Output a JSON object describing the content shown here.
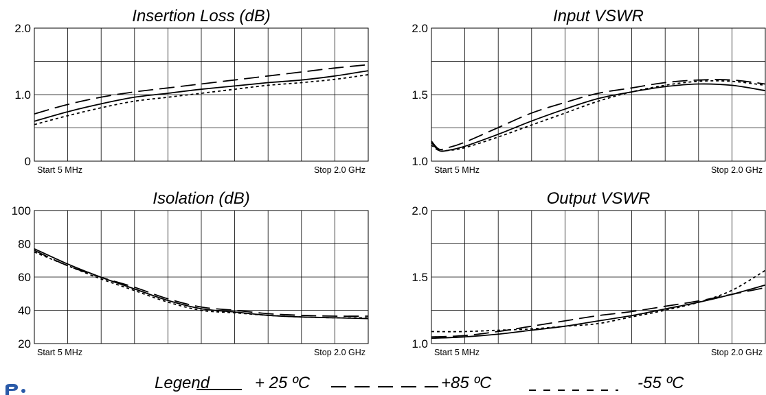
{
  "chart_data": [
    {
      "type": "line",
      "title": "Insertion Loss (dB)",
      "ylim": [
        0,
        2.0
      ],
      "y_tick_labels": [
        "2.0",
        "1.0",
        "0"
      ],
      "x_start_label": "Start 5 MHz",
      "x_stop_label": "Stop 2.0 GHz",
      "xlim": [
        0.005,
        2.0
      ],
      "grid": true,
      "x": [
        0.005,
        0.2,
        0.4,
        0.6,
        0.8,
        1.0,
        1.2,
        1.4,
        1.6,
        1.8,
        2.0
      ],
      "series": [
        {
          "name": "+ 25 ºC",
          "style": "solid",
          "values": [
            0.6,
            0.74,
            0.86,
            0.96,
            1.02,
            1.08,
            1.13,
            1.18,
            1.22,
            1.28,
            1.36
          ]
        },
        {
          "name": "+85 ºC",
          "style": "dashed",
          "values": [
            0.71,
            0.85,
            0.96,
            1.04,
            1.1,
            1.16,
            1.22,
            1.28,
            1.34,
            1.4,
            1.45
          ]
        },
        {
          "name": "-55 ºC",
          "style": "dotted",
          "values": [
            0.55,
            0.68,
            0.8,
            0.9,
            0.96,
            1.02,
            1.08,
            1.14,
            1.18,
            1.23,
            1.3
          ]
        }
      ]
    },
    {
      "type": "line",
      "title": "Input VSWR",
      "ylim": [
        1.0,
        2.0
      ],
      "y_tick_labels": [
        "2.0",
        "1.5",
        "1.0"
      ],
      "x_start_label": "Start 5 MHz",
      "x_stop_label": "Stop 2.0 GHz",
      "xlim": [
        0.005,
        2.0
      ],
      "grid": true,
      "x": [
        0.005,
        0.05,
        0.1,
        0.2,
        0.4,
        0.6,
        0.8,
        1.0,
        1.2,
        1.4,
        1.6,
        1.8,
        2.0
      ],
      "series": [
        {
          "name": "+ 25 ºC",
          "style": "solid",
          "values": [
            1.14,
            1.08,
            1.08,
            1.11,
            1.2,
            1.3,
            1.39,
            1.47,
            1.52,
            1.56,
            1.58,
            1.57,
            1.53
          ]
        },
        {
          "name": "+85 ºC",
          "style": "dashed",
          "values": [
            1.15,
            1.09,
            1.1,
            1.14,
            1.25,
            1.36,
            1.44,
            1.51,
            1.55,
            1.59,
            1.61,
            1.61,
            1.58
          ]
        },
        {
          "name": "-55 ºC",
          "style": "dotted",
          "values": [
            1.12,
            1.08,
            1.08,
            1.1,
            1.18,
            1.27,
            1.36,
            1.45,
            1.52,
            1.57,
            1.6,
            1.6,
            1.57
          ]
        }
      ]
    },
    {
      "type": "line",
      "title": "Isolation (dB)",
      "ylim": [
        20,
        100
      ],
      "y_tick_labels": [
        "100",
        "80",
        "60",
        "40",
        "20"
      ],
      "x_start_label": "Start 5 MHz",
      "x_stop_label": "Stop 2.0 GHz",
      "xlim": [
        0.005,
        2.0
      ],
      "grid": true,
      "x": [
        0.005,
        0.2,
        0.4,
        0.6,
        0.8,
        1.0,
        1.2,
        1.4,
        1.6,
        1.8,
        2.0
      ],
      "series": [
        {
          "name": "+ 25 ºC",
          "style": "solid",
          "values": [
            77,
            68,
            60,
            53,
            46,
            41,
            39,
            37,
            36,
            35.5,
            35
          ]
        },
        {
          "name": "+85 ºC",
          "style": "dashed",
          "values": [
            76,
            67,
            60,
            54,
            47,
            42,
            40,
            38,
            37,
            36.5,
            36.5
          ]
        },
        {
          "name": "-55 ºC",
          "style": "dotted",
          "values": [
            75,
            67,
            59,
            52,
            45,
            40,
            38.5,
            37,
            36,
            35.5,
            35.5
          ]
        }
      ]
    },
    {
      "type": "line",
      "title": "Output VSWR",
      "ylim": [
        1.0,
        2.0
      ],
      "y_tick_labels": [
        "2.0",
        "1.5",
        "1.0"
      ],
      "x_start_label": "Start 5 MHz",
      "x_stop_label": "Stop 2.0 GHz",
      "xlim": [
        0.005,
        2.0
      ],
      "grid": true,
      "x": [
        0.005,
        0.2,
        0.4,
        0.6,
        0.8,
        1.0,
        1.2,
        1.4,
        1.6,
        1.8,
        2.0
      ],
      "series": [
        {
          "name": "+ 25 ºC",
          "style": "solid",
          "values": [
            1.04,
            1.05,
            1.07,
            1.1,
            1.13,
            1.17,
            1.21,
            1.26,
            1.31,
            1.37,
            1.44
          ]
        },
        {
          "name": "+85 ºC",
          "style": "dashed",
          "values": [
            1.05,
            1.06,
            1.09,
            1.13,
            1.17,
            1.21,
            1.24,
            1.28,
            1.32,
            1.37,
            1.42
          ]
        },
        {
          "name": "-55 ºC",
          "style": "dotted",
          "values": [
            1.09,
            1.09,
            1.1,
            1.11,
            1.13,
            1.15,
            1.2,
            1.25,
            1.31,
            1.4,
            1.55
          ]
        }
      ]
    }
  ],
  "legend": {
    "label": "Legend",
    "entries": [
      {
        "label": "+ 25 ºC",
        "style": "solid"
      },
      {
        "label": "+85 ºC",
        "style": "dashed"
      },
      {
        "label": "-55 ºC",
        "style": "dotted"
      }
    ]
  },
  "colors": {
    "line": "#000000",
    "grid": "#000000",
    "background": "#ffffff",
    "logo": "#2a5aa8"
  }
}
